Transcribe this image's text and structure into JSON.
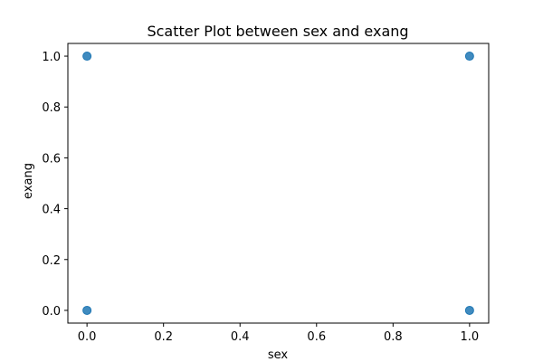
{
  "chart_data": {
    "type": "scatter",
    "title": "Scatter Plot between sex and exang",
    "xlabel": "sex",
    "ylabel": "exang",
    "xlim": [
      -0.05,
      1.05
    ],
    "ylim": [
      -0.05,
      1.05
    ],
    "xticks": [
      0.0,
      0.2,
      0.4,
      0.6,
      0.8,
      1.0
    ],
    "yticks": [
      0.0,
      0.2,
      0.4,
      0.6,
      0.8,
      1.0
    ],
    "xtick_labels": [
      "0.0",
      "0.2",
      "0.4",
      "0.6",
      "0.8",
      "1.0"
    ],
    "ytick_labels": [
      "0.0",
      "0.2",
      "0.4",
      "0.6",
      "0.8",
      "1.0"
    ],
    "grid": false,
    "series": [
      {
        "color": "#1f77b4",
        "points": [
          {
            "x": 0,
            "y": 0
          },
          {
            "x": 0,
            "y": 1
          },
          {
            "x": 1,
            "y": 0
          },
          {
            "x": 1,
            "y": 1
          }
        ]
      }
    ]
  }
}
